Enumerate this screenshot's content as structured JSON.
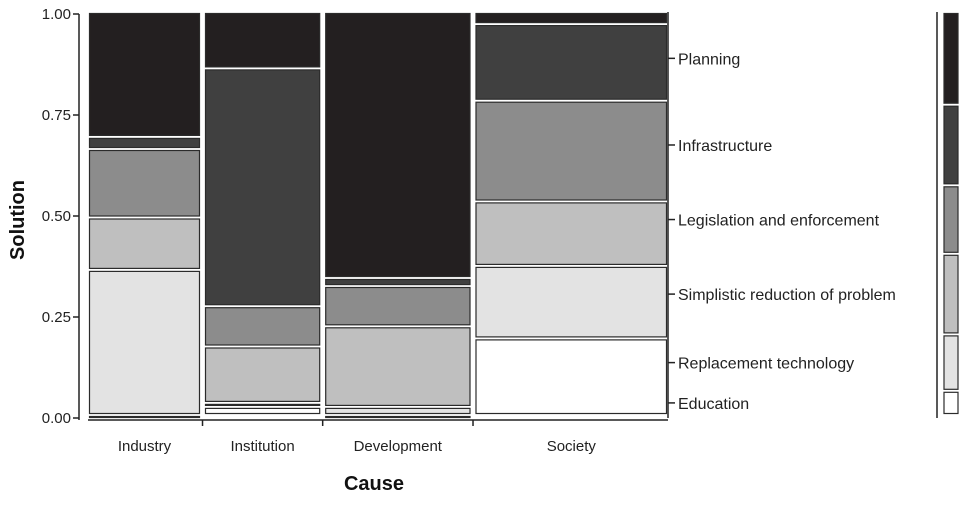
{
  "chart_data": {
    "type": "mosaic",
    "xlabel": "Cause",
    "ylabel": "Solution",
    "ylim": [
      0,
      1
    ],
    "y_ticks": [
      "0.00",
      "0.25",
      "0.50",
      "0.75",
      "1.00"
    ],
    "categories": [
      "Industry",
      "Institution",
      "Development",
      "Society"
    ],
    "category_widths": [
      0.191,
      0.198,
      0.249,
      0.327
    ],
    "levels": [
      "Education",
      "Replacement technology",
      "Simplistic reduction of problem",
      "Legislation and enforcement",
      "Infrastructure",
      "Planning"
    ],
    "level_colors": [
      "#ffffff",
      "#e3e3e3",
      "#bfbfbf",
      "#8c8c8c",
      "#404040",
      "#231f20"
    ],
    "proportions": {
      "Industry": [
        0.0,
        0.36,
        0.13,
        0.17,
        0.03,
        0.31
      ],
      "Institution": [
        0.02,
        0.01,
        0.14,
        0.1,
        0.59,
        0.14
      ],
      "Development": [
        0.0,
        0.02,
        0.2,
        0.1,
        0.02,
        0.66
      ],
      "Society": [
        0.19,
        0.18,
        0.16,
        0.25,
        0.19,
        0.03
      ]
    },
    "marginal_levels": [
      0.06,
      0.14,
      0.2,
      0.17,
      0.2,
      0.23
    ],
    "right_axis_labels": [
      "Education",
      "Replacement technology",
      "Simplistic reduction of problem",
      "Legislation and enforcement",
      "Infrastructure",
      "Planning"
    ]
  }
}
